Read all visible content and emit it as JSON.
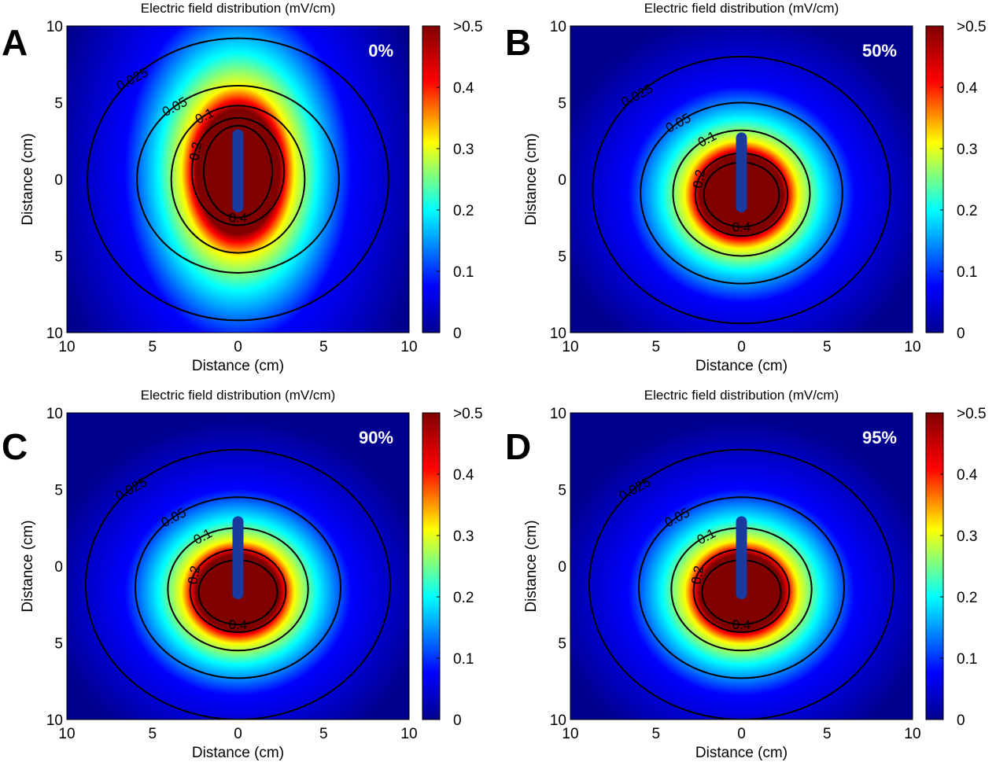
{
  "colors": {
    "colormap": [
      "#00008f",
      "#0000ff",
      "#00ffff",
      "#ffff00",
      "#ff0000",
      "#800000"
    ],
    "contour": "#000000",
    "probe": "#1a3aa0"
  },
  "chart_data": [
    {
      "type": "heatmap",
      "panel": "A",
      "label": "0%",
      "title": "Electric field distribution (mV/cm)",
      "xlabel": "Distance (cm)",
      "ylabel": "Distance (cm)",
      "xlim": [
        -10,
        10
      ],
      "ylim": [
        -10,
        10
      ],
      "x_tick_labels": [
        "10",
        "5",
        "0",
        "5",
        "10"
      ],
      "y_tick_labels": [
        "10",
        "5",
        "0",
        "5",
        "10"
      ],
      "colorbar": {
        "range": [
          0,
          0.5
        ],
        "tick_labels": [
          "0",
          "0.1",
          "0.2",
          "0.3",
          "0.4",
          ">0.5"
        ]
      },
      "contour_labels": [
        "0.025",
        "0.05",
        "0.1",
        "0.2",
        "0.4"
      ],
      "contours": [
        {
          "level": 0.025,
          "cx": 0,
          "cy": 0,
          "rx": 8.8,
          "ry": 9.2
        },
        {
          "level": 0.05,
          "cx": 0,
          "cy": 0,
          "rx": 5.9,
          "ry": 6.1
        },
        {
          "level": 0.1,
          "cx": 0,
          "cy": 0,
          "rx": 3.9,
          "ry": 4.8
        },
        {
          "level": 0.2,
          "cx": 0,
          "cy": 0.5,
          "rx": 2.7,
          "ry": 3.5
        },
        {
          "level": 0.4,
          "cx": 0,
          "cy": 0.5,
          "rx": 2.0,
          "ry": 3.0
        }
      ],
      "probe": {
        "x": 0,
        "y_top": 2.9,
        "y_bottom": -1.8
      }
    },
    {
      "type": "heatmap",
      "panel": "B",
      "label": "50%",
      "title": "Electric field distribution (mV/cm)",
      "xlabel": "Distance (cm)",
      "ylabel": "Distance (cm)",
      "xlim": [
        -10,
        10
      ],
      "ylim": [
        -10,
        10
      ],
      "x_tick_labels": [
        "10",
        "5",
        "0",
        "5",
        "10"
      ],
      "y_tick_labels": [
        "10",
        "5",
        "0",
        "5",
        "10"
      ],
      "colorbar": {
        "range": [
          0,
          0.5
        ],
        "tick_labels": [
          "0",
          "0.1",
          "0.2",
          "0.3",
          "0.4",
          ">0.5"
        ]
      },
      "contour_labels": [
        "0.025",
        "0.05",
        "0.1",
        "0.2",
        "0.4"
      ],
      "contours": [
        {
          "level": 0.025,
          "cx": 0,
          "cy": -0.7,
          "rx": 8.7,
          "ry": 8.7
        },
        {
          "level": 0.05,
          "cx": 0,
          "cy": -0.9,
          "rx": 5.9,
          "ry": 5.9
        },
        {
          "level": 0.1,
          "cx": 0,
          "cy": -0.9,
          "rx": 4.0,
          "ry": 4.1
        },
        {
          "level": 0.2,
          "cx": 0,
          "cy": -1.0,
          "rx": 2.7,
          "ry": 2.7
        },
        {
          "level": 0.4,
          "cx": 0,
          "cy": -1.0,
          "rx": 2.2,
          "ry": 2.1
        }
      ],
      "probe": {
        "x": 0,
        "y_top": 2.7,
        "y_bottom": -1.8
      }
    },
    {
      "type": "heatmap",
      "panel": "C",
      "label": "90%",
      "title": "Electric field distribution (mV/cm)",
      "xlabel": "Distance (cm)",
      "ylabel": "Distance (cm)",
      "xlim": [
        -10,
        10
      ],
      "ylim": [
        -10,
        10
      ],
      "x_tick_labels": [
        "10",
        "5",
        "0",
        "5",
        "10"
      ],
      "y_tick_labels": [
        "10",
        "5",
        "0",
        "5",
        "10"
      ],
      "colorbar": {
        "range": [
          0,
          0.5
        ],
        "tick_labels": [
          "0",
          "0.1",
          "0.2",
          "0.3",
          "0.4",
          ">0.5"
        ]
      },
      "contour_labels": [
        "0.025",
        "0.05",
        "0.1",
        "0.2",
        "0.4"
      ],
      "contours": [
        {
          "level": 0.025,
          "cx": 0,
          "cy": -1.2,
          "rx": 8.9,
          "ry": 8.8
        },
        {
          "level": 0.05,
          "cx": 0,
          "cy": -1.4,
          "rx": 6.0,
          "ry": 5.9
        },
        {
          "level": 0.1,
          "cx": 0,
          "cy": -1.5,
          "rx": 4.1,
          "ry": 4.0
        },
        {
          "level": 0.2,
          "cx": 0,
          "cy": -1.6,
          "rx": 2.8,
          "ry": 2.7
        },
        {
          "level": 0.4,
          "cx": 0,
          "cy": -1.7,
          "rx": 2.3,
          "ry": 2.1
        }
      ],
      "probe": {
        "x": 0,
        "y_top": 2.9,
        "y_bottom": -1.8
      }
    },
    {
      "type": "heatmap",
      "panel": "D",
      "label": "95%",
      "title": "Electric field distribution (mV/cm)",
      "xlabel": "Distance (cm)",
      "ylabel": "Distance (cm)",
      "xlim": [
        -10,
        10
      ],
      "ylim": [
        -10,
        10
      ],
      "x_tick_labels": [
        "10",
        "5",
        "0",
        "5",
        "10"
      ],
      "y_tick_labels": [
        "10",
        "5",
        "0",
        "5",
        "10"
      ],
      "colorbar": {
        "range": [
          0,
          0.5
        ],
        "tick_labels": [
          "0",
          "0.1",
          "0.2",
          "0.3",
          "0.4",
          ">0.5"
        ]
      },
      "contour_labels": [
        "0.025",
        "0.05",
        "0.1",
        "0.2",
        "0.4"
      ],
      "contours": [
        {
          "level": 0.025,
          "cx": 0,
          "cy": -1.2,
          "rx": 8.9,
          "ry": 8.8
        },
        {
          "level": 0.05,
          "cx": 0,
          "cy": -1.4,
          "rx": 6.0,
          "ry": 5.9
        },
        {
          "level": 0.1,
          "cx": 0,
          "cy": -1.5,
          "rx": 4.1,
          "ry": 4.0
        },
        {
          "level": 0.2,
          "cx": 0,
          "cy": -1.6,
          "rx": 2.8,
          "ry": 2.7
        },
        {
          "level": 0.4,
          "cx": 0,
          "cy": -1.7,
          "rx": 2.3,
          "ry": 2.1
        }
      ],
      "probe": {
        "x": 0,
        "y_top": 2.9,
        "y_bottom": -1.8
      }
    }
  ]
}
